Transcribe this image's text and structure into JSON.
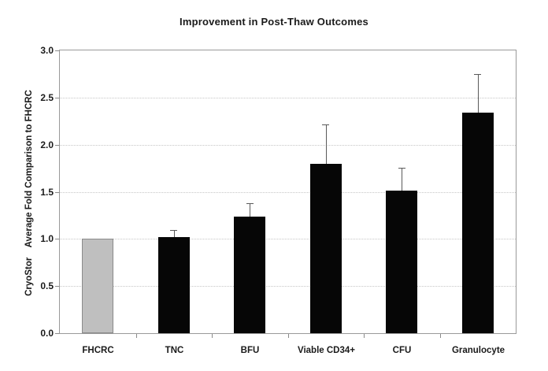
{
  "title": "Improvement in Post-Thaw Outcomes",
  "y_axis_title": "CryoStor    Average Fold Comparison to FHCRC",
  "chart_data": {
    "type": "bar",
    "title": "Improvement in Post-Thaw Outcomes",
    "xlabel": "",
    "ylabel": "CryoStor    Average Fold Comparison to FHCRC",
    "categories": [
      "FHCRC",
      "TNC",
      "BFU",
      "Viable CD34+",
      "CFU",
      "Granulocyte"
    ],
    "values": [
      1.0,
      1.02,
      1.24,
      1.8,
      1.51,
      2.34
    ],
    "error_plus": [
      0,
      0.07,
      0.13,
      0.41,
      0.23,
      0.4
    ],
    "bar_colors": [
      "#bfbfbf",
      "#060606",
      "#060606",
      "#060606",
      "#060606",
      "#060606"
    ],
    "bar_border_colors": [
      "#8a8a8a",
      "#060606",
      "#060606",
      "#060606",
      "#060606",
      "#060606"
    ],
    "ylim": [
      0,
      3
    ],
    "yticks": [
      "0.0",
      "0.5",
      "1.0",
      "1.5",
      "2.0",
      "2.5",
      "3.0"
    ],
    "grid": "horizontal-dotted",
    "legend": "none",
    "colors": {
      "background": "#ffffff",
      "grid": "#c6c6c6",
      "axis_border": "#9a9a9a",
      "error_bar": "#5a5a5a",
      "text": "#1a1a1a",
      "baseline_bar": "#bfbfbf",
      "series_bar": "#060606"
    }
  }
}
